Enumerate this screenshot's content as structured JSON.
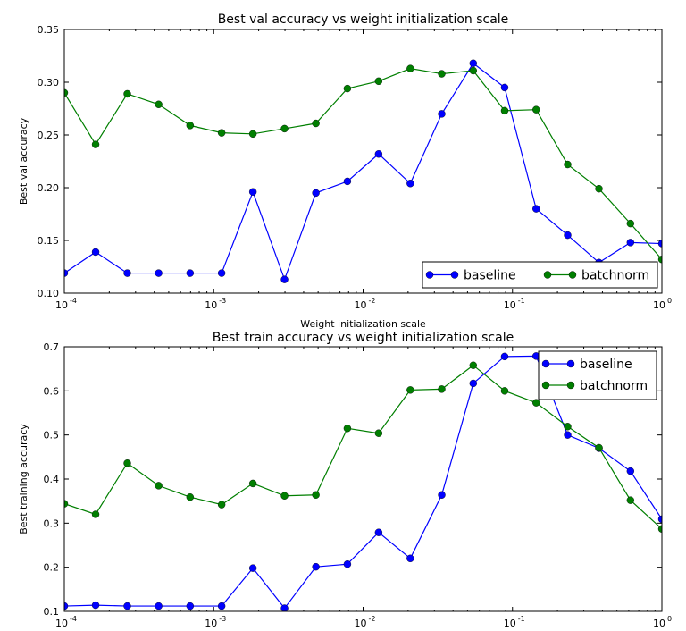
{
  "chart_data": [
    {
      "type": "line",
      "title": "Best val accuracy vs weight initialization scale",
      "xlabel": "Weight initialization scale",
      "ylabel": "Best val accuracy",
      "xscale": "log",
      "xlim": [
        0.0001,
        1
      ],
      "ylim": [
        0.1,
        0.35
      ],
      "x_ticks": [
        {
          "value": 0.0001,
          "base": "10",
          "exp": "-4"
        },
        {
          "value": 0.001,
          "base": "10",
          "exp": "-3"
        },
        {
          "value": 0.01,
          "base": "10",
          "exp": "-2"
        },
        {
          "value": 0.1,
          "base": "10",
          "exp": "-1"
        },
        {
          "value": 1,
          "base": "10",
          "exp": "0"
        }
      ],
      "y_ticks": [
        {
          "value": 0.1,
          "label": "0.10"
        },
        {
          "value": 0.15,
          "label": "0.15"
        },
        {
          "value": 0.2,
          "label": "0.20"
        },
        {
          "value": 0.25,
          "label": "0.25"
        },
        {
          "value": 0.3,
          "label": "0.30"
        },
        {
          "value": 0.35,
          "label": "0.35"
        }
      ],
      "x": [
        0.0001,
        0.000162,
        0.000264,
        0.000428,
        0.000695,
        0.00113,
        0.00183,
        0.00298,
        0.00483,
        0.00785,
        0.0127,
        0.0207,
        0.0336,
        0.0546,
        0.0886,
        0.144,
        0.234,
        0.379,
        0.616,
        1.0
      ],
      "series": [
        {
          "name": "baseline",
          "color": "#0000ff",
          "values": [
            0.119,
            0.139,
            0.119,
            0.119,
            0.119,
            0.119,
            0.196,
            0.113,
            0.195,
            0.206,
            0.232,
            0.204,
            0.27,
            0.318,
            0.295,
            0.18,
            0.155,
            0.129,
            0.148,
            0.147
          ]
        },
        {
          "name": "batchnorm",
          "color": "#007f00",
          "values": [
            0.29,
            0.241,
            0.289,
            0.279,
            0.259,
            0.252,
            0.251,
            0.256,
            0.261,
            0.294,
            0.301,
            0.313,
            0.308,
            0.311,
            0.273,
            0.274,
            0.222,
            0.199,
            0.166,
            0.132
          ]
        }
      ],
      "legend": {
        "position": "lower-right",
        "ncol": 2
      }
    },
    {
      "type": "line",
      "title": "Best train accuracy vs weight initialization scale",
      "xlabel": "",
      "ylabel": "Best training accuracy",
      "xscale": "log",
      "xlim": [
        0.0001,
        1
      ],
      "ylim": [
        0.1,
        0.7
      ],
      "x_ticks": [
        {
          "value": 0.0001,
          "base": "10",
          "exp": "-4"
        },
        {
          "value": 0.001,
          "base": "10",
          "exp": "-3"
        },
        {
          "value": 0.01,
          "base": "10",
          "exp": "-2"
        },
        {
          "value": 0.1,
          "base": "10",
          "exp": "-1"
        },
        {
          "value": 1,
          "base": "10",
          "exp": "0"
        }
      ],
      "y_ticks": [
        {
          "value": 0.1,
          "label": "0.1"
        },
        {
          "value": 0.2,
          "label": "0.2"
        },
        {
          "value": 0.3,
          "label": "0.3"
        },
        {
          "value": 0.4,
          "label": "0.4"
        },
        {
          "value": 0.5,
          "label": "0.5"
        },
        {
          "value": 0.6,
          "label": "0.6"
        },
        {
          "value": 0.7,
          "label": "0.7"
        }
      ],
      "x": [
        0.0001,
        0.000162,
        0.000264,
        0.000428,
        0.000695,
        0.00113,
        0.00183,
        0.00298,
        0.00483,
        0.00785,
        0.0127,
        0.0207,
        0.0336,
        0.0546,
        0.0886,
        0.144,
        0.234,
        0.379,
        0.616,
        1.0
      ],
      "series": [
        {
          "name": "baseline",
          "color": "#0000ff",
          "values": [
            0.112,
            0.114,
            0.112,
            0.112,
            0.112,
            0.112,
            0.198,
            0.107,
            0.201,
            0.207,
            0.279,
            0.22,
            0.364,
            0.617,
            0.678,
            0.679,
            0.5,
            0.47,
            0.418,
            0.309
          ]
        },
        {
          "name": "batchnorm",
          "color": "#007f00",
          "values": [
            0.344,
            0.32,
            0.436,
            0.385,
            0.359,
            0.342,
            0.39,
            0.362,
            0.364,
            0.515,
            0.504,
            0.602,
            0.604,
            0.658,
            0.6,
            0.573,
            0.519,
            0.471,
            0.352,
            0.287
          ]
        }
      ],
      "legend": {
        "position": "upper-right",
        "ncol": 1
      }
    }
  ]
}
